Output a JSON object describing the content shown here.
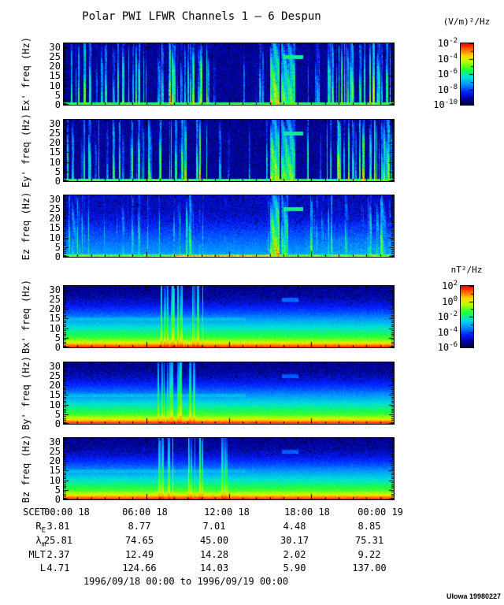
{
  "page": {
    "credit": "UIowa 19980227",
    "background": "#ffffff"
  },
  "colors": {
    "frame": "#000000",
    "text": "#000000",
    "colormap_stops": [
      [
        0.0,
        0,
        0,
        70
      ],
      [
        0.08,
        0,
        0,
        150
      ],
      [
        0.2,
        0,
        30,
        255
      ],
      [
        0.33,
        0,
        150,
        255
      ],
      [
        0.45,
        0,
        225,
        215
      ],
      [
        0.57,
        30,
        255,
        60
      ],
      [
        0.7,
        185,
        255,
        0
      ],
      [
        0.8,
        255,
        215,
        0
      ],
      [
        0.89,
        255,
        120,
        0
      ],
      [
        1.0,
        255,
        0,
        0
      ]
    ]
  },
  "chart_data": {
    "type": "heatmap",
    "kind": "spectrogram-stack",
    "title": "Polar PWI LFWR Channels 1 — 6 Despun",
    "time_range": "1996/09/18 00:00 to 1996/09/19 00:00",
    "x_axis": {
      "label_prefix": "SCET",
      "ticks": [
        "00:00 18",
        "06:00 18",
        "12:00 18",
        "18:00 18",
        "00:00 19"
      ],
      "range_hours": [
        0,
        24
      ],
      "major_step_hours": 6,
      "minor_step_hours": 1
    },
    "y_axis": {
      "tick_labels": [
        30,
        25,
        20,
        15,
        10,
        5,
        0
      ],
      "ylim": [
        0,
        32
      ],
      "major_step": 5,
      "minor_step": 1
    },
    "colorbars": [
      {
        "units": "(V/m)²/Hz",
        "applies_to": [
          "Ex'",
          "Ey'",
          "Ez"
        ],
        "base": "10",
        "tick_exponents": [
          "-2",
          "-4",
          "-6",
          "-8",
          "-10"
        ]
      },
      {
        "units": "nT²/Hz",
        "applies_to": [
          "Bx'",
          "By'",
          "Bz"
        ],
        "base": "10",
        "tick_exponents": [
          "2",
          "0",
          "-2",
          "-4",
          "-6"
        ]
      }
    ],
    "panels": [
      {
        "id": "ex",
        "ylabel": "Ex' freq (Hz)",
        "texture": {
          "style": "E",
          "seed": 11,
          "base": 0.1,
          "speckle": 0.22,
          "bottom_band": 0.55,
          "clusters": [
            {
              "x0": 0.005,
              "x1": 0.29,
              "density": 0.4,
              "amp": 0.5
            },
            {
              "x0": 0.29,
              "x1": 0.435,
              "density": 0.7,
              "amp": 0.6
            },
            {
              "x0": 0.435,
              "x1": 0.62,
              "density": 0.07,
              "amp": 0.34
            },
            {
              "x0": 0.625,
              "x1": 0.652,
              "density": 1,
              "amp": 0.7,
              "solid": true
            },
            {
              "x0": 0.658,
              "x1": 0.7,
              "density": 1,
              "amp": 0.58,
              "solid": true
            },
            {
              "x0": 0.735,
              "x1": 0.83,
              "density": 0.45,
              "amp": 0.5
            },
            {
              "x0": 0.83,
              "x1": 0.995,
              "density": 0.62,
              "amp": 0.62
            }
          ],
          "dash": {
            "x0": 0.665,
            "x1": 0.725,
            "f": 25,
            "amp": 0.5
          },
          "hot_bottom": []
        }
      },
      {
        "id": "ey",
        "ylabel": "Ey' freq (Hz)",
        "texture": {
          "style": "E",
          "seed": 12,
          "base": 0.1,
          "speckle": 0.22,
          "bottom_band": 0.55,
          "clusters": [
            {
              "x0": 0.005,
              "x1": 0.29,
              "density": 0.4,
              "amp": 0.52
            },
            {
              "x0": 0.29,
              "x1": 0.435,
              "density": 0.7,
              "amp": 0.6
            },
            {
              "x0": 0.435,
              "x1": 0.62,
              "density": 0.07,
              "amp": 0.34
            },
            {
              "x0": 0.625,
              "x1": 0.652,
              "density": 1,
              "amp": 0.7,
              "solid": true
            },
            {
              "x0": 0.658,
              "x1": 0.7,
              "density": 1,
              "amp": 0.58,
              "solid": true
            },
            {
              "x0": 0.735,
              "x1": 0.83,
              "density": 0.45,
              "amp": 0.5
            },
            {
              "x0": 0.83,
              "x1": 0.995,
              "density": 0.65,
              "amp": 0.62
            }
          ],
          "dash": {
            "x0": 0.665,
            "x1": 0.725,
            "f": 25,
            "amp": 0.5
          },
          "hot_bottom": []
        }
      },
      {
        "id": "ez",
        "ylabel": "Ez freq (Hz)",
        "texture": {
          "style": "E",
          "seed": 13,
          "base": 0.14,
          "speckle": 0.14,
          "bottom_band": 0.6,
          "lowwash": 0.22,
          "clusters": [
            {
              "x0": 0.005,
              "x1": 0.1,
              "density": 0.55,
              "amp": 0.48
            },
            {
              "x0": 0.1,
              "x1": 0.43,
              "density": 0.3,
              "amp": 0.42
            },
            {
              "x0": 0.43,
              "x1": 0.62,
              "density": 0.08,
              "amp": 0.32
            },
            {
              "x0": 0.625,
              "x1": 0.652,
              "density": 1,
              "amp": 0.72,
              "solid": true
            },
            {
              "x0": 0.658,
              "x1": 0.678,
              "density": 1,
              "amp": 0.55,
              "solid": true
            },
            {
              "x0": 0.74,
              "x1": 0.995,
              "density": 0.4,
              "amp": 0.45
            }
          ],
          "wash": {
            "x0": 0.73,
            "x1": 1.0,
            "amp": 0.34
          },
          "dash": {
            "x0": 0.665,
            "x1": 0.725,
            "f": 25,
            "amp": 0.52
          },
          "hot_bottom": [
            {
              "x0": 0.33,
              "x1": 0.62,
              "amp": 0.8
            }
          ]
        }
      },
      {
        "id": "bx",
        "ylabel": "Bx' freq (Hz)",
        "texture": {
          "style": "B",
          "seed": 14,
          "profile": [
            [
              0,
              0.97
            ],
            [
              0.8,
              0.93
            ],
            [
              1.6,
              0.86
            ],
            [
              2.5,
              0.78
            ],
            [
              3.5,
              0.68
            ],
            [
              5,
              0.6
            ],
            [
              8,
              0.52
            ],
            [
              11,
              0.44
            ],
            [
              14,
              0.36
            ],
            [
              18,
              0.26
            ],
            [
              22,
              0.18
            ],
            [
              27,
              0.12
            ],
            [
              32,
              0.09
            ]
          ],
          "clusters": [
            {
              "x0": 0.284,
              "x1": 0.357,
              "density": 0.55,
              "lift": 0.85
            },
            {
              "x0": 0.374,
              "x1": 0.423,
              "density": 0.6,
              "lift": 0.8
            }
          ],
          "line15": {
            "x0": 0.0,
            "x1": 0.55,
            "f": 15,
            "amp": 0.05
          },
          "dash": {
            "x0": 0.66,
            "x1": 0.71,
            "f": 25,
            "amp": 0.14
          }
        }
      },
      {
        "id": "by",
        "ylabel": "By' freq (Hz)",
        "texture": {
          "style": "B",
          "seed": 15,
          "profile": [
            [
              0,
              0.97
            ],
            [
              0.8,
              0.93
            ],
            [
              1.6,
              0.86
            ],
            [
              2.5,
              0.78
            ],
            [
              3.5,
              0.68
            ],
            [
              5,
              0.6
            ],
            [
              8,
              0.52
            ],
            [
              11,
              0.44
            ],
            [
              14,
              0.36
            ],
            [
              18,
              0.26
            ],
            [
              22,
              0.18
            ],
            [
              27,
              0.12
            ],
            [
              32,
              0.09
            ]
          ],
          "clusters": [
            {
              "x0": 0.284,
              "x1": 0.357,
              "density": 0.55,
              "lift": 0.85
            },
            {
              "x0": 0.374,
              "x1": 0.423,
              "density": 0.6,
              "lift": 0.8
            }
          ],
          "line15": {
            "x0": 0.0,
            "x1": 0.55,
            "f": 15,
            "amp": 0.05
          },
          "dash": {
            "x0": 0.66,
            "x1": 0.71,
            "f": 25,
            "amp": 0.12
          }
        }
      },
      {
        "id": "bz",
        "ylabel": "Bz freq (Hz)",
        "texture": {
          "style": "B",
          "seed": 16,
          "profile": [
            [
              0,
              0.97
            ],
            [
              0.8,
              0.93
            ],
            [
              1.6,
              0.86
            ],
            [
              2.5,
              0.78
            ],
            [
              3.5,
              0.68
            ],
            [
              5,
              0.6
            ],
            [
              8,
              0.52
            ],
            [
              11,
              0.44
            ],
            [
              14,
              0.36
            ],
            [
              18,
              0.26
            ],
            [
              22,
              0.18
            ],
            [
              27,
              0.12
            ],
            [
              32,
              0.09
            ]
          ],
          "clusters": [
            {
              "x0": 0.284,
              "x1": 0.357,
              "density": 0.55,
              "lift": 0.85
            },
            {
              "x0": 0.374,
              "x1": 0.423,
              "density": 0.6,
              "lift": 0.8
            },
            {
              "x0": 0.46,
              "x1": 0.51,
              "density": 0.35,
              "lift": 0.6
            }
          ],
          "line15": {
            "x0": 0.0,
            "x1": 0.55,
            "f": 15,
            "amp": 0.05
          },
          "dash": {
            "x0": 0.66,
            "x1": 0.71,
            "f": 25,
            "amp": 0.12
          }
        }
      }
    ],
    "ephemeris": {
      "rows": [
        {
          "label": "R",
          "sub": "E",
          "values": [
            "3.81",
            "8.77",
            "7.01",
            "4.48",
            "8.85"
          ]
        },
        {
          "label": "λ",
          "sub": "m",
          "values": [
            "25.81",
            "74.65",
            "45.00",
            "30.17",
            "75.31"
          ]
        },
        {
          "label": "MLT",
          "sub": "",
          "values": [
            "2.37",
            "12.49",
            "14.28",
            "2.02",
            "9.22"
          ]
        },
        {
          "label": "L",
          "sub": "",
          "values": [
            "4.71",
            "124.66",
            "14.03",
            "5.90",
            "137.00"
          ]
        }
      ]
    }
  }
}
